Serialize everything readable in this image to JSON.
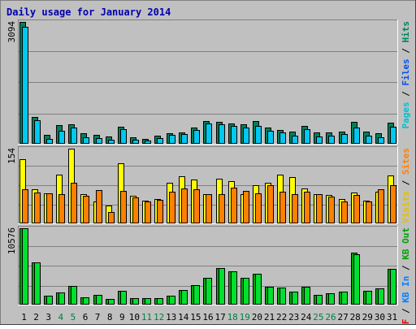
{
  "chart_data": {
    "type": "bar",
    "title": "Daily usage for January 2014",
    "categories": [
      "1",
      "2",
      "3",
      "4",
      "5",
      "6",
      "7",
      "8",
      "9",
      "10",
      "11",
      "12",
      "13",
      "14",
      "15",
      "16",
      "17",
      "18",
      "19",
      "20",
      "21",
      "22",
      "23",
      "24",
      "25",
      "26",
      "27",
      "28",
      "29",
      "30",
      "31"
    ],
    "weekend_categories": [
      "4",
      "5",
      "11",
      "12",
      "18",
      "19",
      "25",
      "26"
    ],
    "panels": [
      {
        "id": "pages-files-hits",
        "max_label": "3094",
        "ymax": 3094,
        "legend": [
          {
            "text": "Pages",
            "color": "#00c0d0"
          },
          {
            "text": "Files",
            "color": "#0050f0"
          },
          {
            "text": "Hits",
            "color": "#008060"
          }
        ],
        "series": [
          {
            "name": "Hits",
            "color": "#00805c",
            "values": [
              3094,
              680,
              220,
              480,
              500,
              260,
              220,
              190,
              440,
              170,
              120,
              200,
              270,
              290,
              410,
              570,
              560,
              520,
              500,
              570,
              410,
              360,
              310,
              460,
              280,
              280,
              310,
              560,
              300,
              260,
              530
            ]
          },
          {
            "name": "Files",
            "color": "#00c8f0",
            "values": [
              2980,
              600,
              120,
              330,
              420,
              170,
              140,
              100,
              380,
              110,
              90,
              150,
              220,
              240,
              360,
              510,
              500,
              450,
              420,
              460,
              330,
              290,
              210,
              380,
              190,
              210,
              250,
              410,
              210,
              170,
              430
            ]
          }
        ]
      },
      {
        "id": "visits-sites",
        "max_label": "154",
        "ymax": 154,
        "legend": [
          {
            "text": "Visits",
            "color": "#e0c000"
          },
          {
            "text": "Sites",
            "color": "#ff8000"
          }
        ],
        "series": [
          {
            "name": "Visits",
            "color": "#ffff00",
            "values": [
              132,
              70,
              62,
              100,
              154,
              60,
              46,
              36,
              124,
              57,
              47,
              50,
              83,
              97,
              90,
              60,
              92,
              87,
              60,
              78,
              83,
              100,
              95,
              72,
              60,
              58,
              50,
              64,
              47,
              65,
              98
            ]
          },
          {
            "name": "Sites",
            "color": "#ff8000",
            "values": [
              70,
              64,
              62,
              60,
              83,
              57,
              68,
              23,
              67,
              54,
              45,
              49,
              65,
              72,
              71,
              60,
              60,
              74,
              67,
              62,
              78,
              65,
              60,
              65,
              60,
              56,
              45,
              58,
              45,
              70,
              79
            ]
          }
        ]
      },
      {
        "id": "kb",
        "max_label": "10576",
        "ymax": 10576,
        "legend": [
          {
            "text": "KB F",
            "color": "#e00000"
          },
          {
            "text": "KB In",
            "color": "#0080ff"
          },
          {
            "text": "KB Out",
            "color": "#00a000"
          }
        ],
        "series": [
          {
            "name": "KB F",
            "color": "#00a800",
            "values": [
              10576,
              5900,
              1200,
              1650,
              2600,
              1050,
              1400,
              800,
              1900,
              950,
              850,
              900,
              1250,
              2050,
              2750,
              3750,
              5050,
              4650,
              3750,
              4250,
              2450,
              2400,
              1850,
              2450,
              1300,
              1600,
              1800,
              7200,
              1900,
              2300,
              4900
            ]
          },
          {
            "name": "KB F",
            "color": "#00e030",
            "values": [
              10576,
              5900,
              1200,
              1650,
              2600,
              1050,
              1400,
              800,
              1900,
              950,
              850,
              900,
              1250,
              2050,
              2750,
              3750,
              5050,
              4650,
              3750,
              4250,
              2450,
              2400,
              1850,
              2450,
              1300,
              1600,
              1800,
              7000,
              1900,
              2300,
              4900
            ]
          }
        ]
      }
    ]
  }
}
